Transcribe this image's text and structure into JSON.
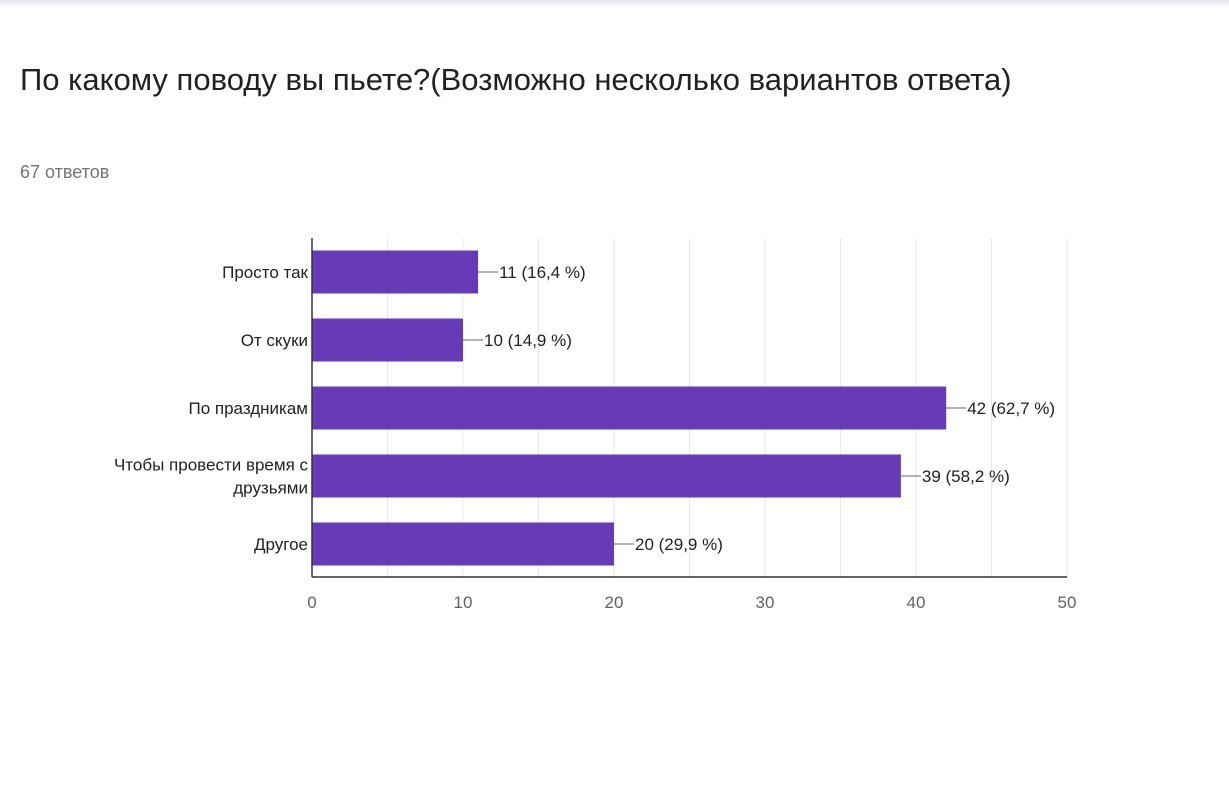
{
  "question": {
    "title": "По какому поводу вы пьете?(Возможно несколько вариантов ответа)",
    "responses": "67 ответов"
  },
  "colors": {
    "bar": "#673ab7",
    "grid": "#e8e8e8",
    "axis": "#333333",
    "label": "#222222",
    "tick": "#5f6368"
  },
  "chart_data": {
    "type": "bar",
    "orientation": "horizontal",
    "categories": [
      "Просто так",
      "От скуки",
      "По праздникам",
      "Чтобы провести время с друзьями",
      "Другое"
    ],
    "category_lines": [
      [
        "Просто так"
      ],
      [
        "От скуки"
      ],
      [
        "По праздникам"
      ],
      [
        "Чтобы провести время с",
        "друзьями"
      ],
      [
        "Другое"
      ]
    ],
    "values": [
      11,
      10,
      42,
      39,
      20
    ],
    "data_labels": [
      "11 (16,4 %)",
      "10 (14,9 %)",
      "42 (62,7 %)",
      "39 (58,2 %)",
      "20 (29,9 %)"
    ],
    "xlim": [
      0,
      50
    ],
    "xticks": [
      0,
      10,
      20,
      30,
      40,
      50
    ],
    "grid": true,
    "legend": "none"
  }
}
